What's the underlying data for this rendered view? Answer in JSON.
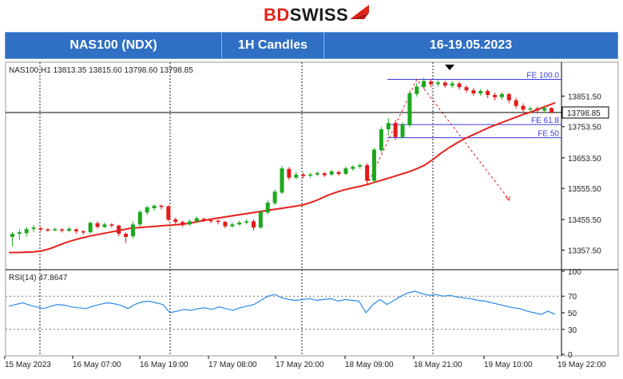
{
  "brand": {
    "name_a": "BD",
    "name_b": "SWISS"
  },
  "header": {
    "instrument": "NAS100 (NDX)",
    "timeframe": "1H Candles",
    "date_range": "16-19.05.2023"
  },
  "colors": {
    "header_bg": "#2f6fc4",
    "bull": "#1ea81e",
    "bear": "#e21a1a",
    "ma": "#e8201a",
    "rsi": "#2a88e8",
    "fib": "#3a3ae0"
  },
  "chart_data": [
    {
      "type": "candlestick",
      "info_label": "NAS100,H1  13813.35 13815.60 13798.60 13798.85",
      "ylim": [
        13300,
        13960
      ],
      "y_ticks": [
        "13851.50",
        "13753.50",
        "13653.50",
        "13555.50",
        "13455.50",
        "13357.50"
      ],
      "y_tick_values": [
        13851.5,
        13753.5,
        13653.5,
        13555.5,
        13455.5,
        13357.5
      ],
      "current_price": "13798.85",
      "current_price_value": 13798.85,
      "x_ticks": [
        "15 May 2023",
        "16 May 07:00",
        "16 May 19:00",
        "17 May 08:00",
        "17 May 20:00",
        "18 May 09:00",
        "18 May 21:00",
        "19 May 10:00",
        "19 May 22:00"
      ],
      "fib_levels": [
        {
          "label": "FE 100.0",
          "value": 13905
        },
        {
          "label": "FE 61.8",
          "value": 13760
        },
        {
          "label": "FE 50",
          "value": 13718
        }
      ],
      "ma_series": [
        13350,
        13350,
        13351,
        13352,
        13355,
        13362,
        13372,
        13382,
        13390,
        13397,
        13403,
        13408,
        13413,
        13418,
        13423,
        13428,
        13430,
        13432,
        13434,
        13436,
        13438,
        13440,
        13443,
        13448,
        13453,
        13458,
        13462,
        13466,
        13470,
        13474,
        13478,
        13482,
        13486,
        13490,
        13494,
        13498,
        13502,
        13510,
        13520,
        13532,
        13542,
        13550,
        13556,
        13562,
        13568,
        13576,
        13584,
        13592,
        13600,
        13608,
        13618,
        13630,
        13648,
        13668,
        13686,
        13702,
        13716,
        13728,
        13740,
        13752,
        13762,
        13772,
        13782,
        13792,
        13800,
        13810,
        13820,
        13830
      ],
      "candles": [
        [
          13400,
          13410,
          13370,
          13415
        ],
        [
          13410,
          13415,
          13390,
          13425
        ],
        [
          13412,
          13425,
          13400,
          13432
        ],
        [
          13425,
          13430,
          13415,
          13438
        ],
        [
          13428,
          13424,
          13418,
          13432
        ],
        [
          13424,
          13422,
          13416,
          13428
        ],
        [
          13422,
          13425,
          13418,
          13430
        ],
        [
          13424,
          13420,
          13414,
          13428
        ],
        [
          13420,
          13426,
          13416,
          13432
        ],
        [
          13424,
          13418,
          13410,
          13428
        ],
        [
          13418,
          13414,
          13408,
          13422
        ],
        [
          13415,
          13445,
          13410,
          13450
        ],
        [
          13444,
          13432,
          13426,
          13450
        ],
        [
          13432,
          13440,
          13428,
          13446
        ],
        [
          13440,
          13436,
          13430,
          13444
        ],
        [
          13436,
          13410,
          13402,
          13440
        ],
        [
          13410,
          13400,
          13380,
          13415
        ],
        [
          13402,
          13440,
          13395,
          13450
        ],
        [
          13440,
          13480,
          13434,
          13486
        ],
        [
          13478,
          13495,
          13470,
          13500
        ],
        [
          13492,
          13500,
          13484,
          13504
        ],
        [
          13500,
          13496,
          13488,
          13504
        ],
        [
          13498,
          13455,
          13450,
          13502
        ],
        [
          13456,
          13448,
          13440,
          13462
        ],
        [
          13448,
          13438,
          13432,
          13452
        ],
        [
          13440,
          13450,
          13436,
          13456
        ],
        [
          13450,
          13460,
          13445,
          13465
        ],
        [
          13458,
          13454,
          13448,
          13462
        ],
        [
          13454,
          13450,
          13444,
          13458
        ],
        [
          13452,
          13448,
          13440,
          13456
        ],
        [
          13448,
          13434,
          13428,
          13452
        ],
        [
          13434,
          13440,
          13430,
          13446
        ],
        [
          13440,
          13446,
          13436,
          13452
        ],
        [
          13446,
          13450,
          13440,
          13456
        ],
        [
          13450,
          13430,
          13420,
          13456
        ],
        [
          13430,
          13480,
          13426,
          13486
        ],
        [
          13478,
          13510,
          13472,
          13518
        ],
        [
          13508,
          13545,
          13502,
          13552
        ],
        [
          13542,
          13620,
          13538,
          13628
        ],
        [
          13618,
          13590,
          13582,
          13624
        ],
        [
          13590,
          13600,
          13585,
          13608
        ],
        [
          13600,
          13595,
          13588,
          13606
        ],
        [
          13596,
          13600,
          13590,
          13606
        ],
        [
          13600,
          13605,
          13595,
          13610
        ],
        [
          13604,
          13598,
          13592,
          13608
        ],
        [
          13600,
          13610,
          13596,
          13616
        ],
        [
          13608,
          13602,
          13596,
          13612
        ],
        [
          13602,
          13620,
          13598,
          13626
        ],
        [
          13618,
          13625,
          13612,
          13630
        ],
        [
          13625,
          13630,
          13618,
          13636
        ],
        [
          13630,
          13580,
          13570,
          13636
        ],
        [
          13580,
          13680,
          13574,
          13686
        ],
        [
          13678,
          13745,
          13670,
          13752
        ],
        [
          13745,
          13765,
          13725,
          13780
        ],
        [
          13765,
          13720,
          13710,
          13775
        ],
        [
          13720,
          13760,
          13715,
          13768
        ],
        [
          13758,
          13860,
          13752,
          13870
        ],
        [
          13858,
          13882,
          13850,
          13892
        ],
        [
          13880,
          13900,
          13874,
          13910
        ],
        [
          13898,
          13890,
          13880,
          13905
        ],
        [
          13890,
          13895,
          13882,
          13902
        ],
        [
          13895,
          13885,
          13878,
          13900
        ],
        [
          13885,
          13892,
          13878,
          13900
        ],
        [
          13892,
          13880,
          13872,
          13898
        ],
        [
          13880,
          13870,
          13862,
          13886
        ],
        [
          13870,
          13860,
          13852,
          13878
        ],
        [
          13860,
          13868,
          13852,
          13874
        ],
        [
          13868,
          13855,
          13845,
          13874
        ],
        [
          13855,
          13848,
          13838,
          13862
        ],
        [
          13848,
          13858,
          13840,
          13864
        ],
        [
          13858,
          13838,
          13828,
          13862
        ],
        [
          13838,
          13820,
          13812,
          13846
        ],
        [
          13820,
          13808,
          13798,
          13828
        ],
        [
          13808,
          13812,
          13800,
          13818
        ],
        [
          13812,
          13805,
          13796,
          13818
        ],
        [
          13805,
          13813,
          13798,
          13818
        ],
        [
          13813,
          13799,
          13798,
          13816
        ]
      ]
    },
    {
      "type": "line",
      "title": "RSI(14) 47.8647",
      "ylim": [
        0,
        100
      ],
      "y_ticks": [
        "100",
        "70",
        "50",
        "30",
        "0"
      ],
      "y_tick_values": [
        100,
        70,
        50,
        30,
        0
      ],
      "levels": [
        70,
        30
      ],
      "values": [
        58,
        60,
        62,
        59,
        57,
        55,
        58,
        60,
        59,
        57,
        56,
        55,
        58,
        60,
        62,
        61,
        59,
        55,
        60,
        63,
        64,
        62,
        60,
        50,
        52,
        54,
        53,
        55,
        56,
        54,
        57,
        55,
        53,
        56,
        58,
        60,
        65,
        70,
        72,
        68,
        66,
        65,
        66,
        67,
        65,
        66,
        67,
        64,
        66,
        65,
        64,
        50,
        60,
        66,
        60,
        65,
        70,
        74,
        76,
        73,
        71,
        72,
        70,
        71,
        69,
        68,
        67,
        65,
        64,
        62,
        60,
        58,
        56,
        55,
        52,
        50,
        48,
        52,
        48
      ]
    }
  ]
}
